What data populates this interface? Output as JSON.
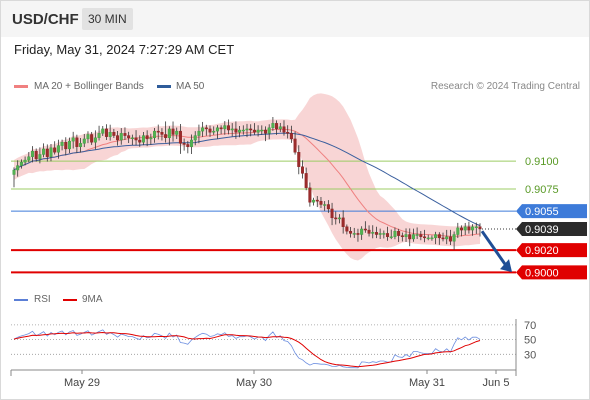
{
  "header": {
    "symbol": "USD/CHF",
    "period": "30 MIN"
  },
  "timestamp": "Friday, May 31, 2024 7:27:29 AM CET",
  "legend": [
    {
      "label": "MA 20 + Bollinger Bands",
      "color": "#f08080"
    },
    {
      "label": "MA 50",
      "color": "#2e5c9a"
    }
  ],
  "credit": "Research © 2024 Trading Central",
  "rsi_legend": [
    {
      "label": "RSI",
      "color": "#5b7fd6"
    },
    {
      "label": "9MA",
      "color": "#e00000"
    }
  ],
  "chart_data": [
    {
      "type": "candlestick",
      "title": "USD/CHF 30 MIN",
      "x_ticks": [
        "May 29",
        "May 30",
        "May 31",
        "Jun 5"
      ],
      "y_range": [
        0.8985,
        0.9155
      ],
      "last_price": "0.9039",
      "levels": [
        {
          "value": 0.91,
          "label": "0.9100",
          "kind": "resistance-minor",
          "color": "#9ccc65"
        },
        {
          "value": 0.9075,
          "label": "0.9075",
          "kind": "resistance-minor",
          "color": "#9ccc65"
        },
        {
          "value": 0.9055,
          "label": "0.9055",
          "kind": "pivot",
          "color": "#3d7bd9"
        },
        {
          "value": 0.902,
          "label": "0.9020",
          "kind": "target",
          "color": "#e00000"
        },
        {
          "value": 0.9,
          "label": "0.9000",
          "kind": "target",
          "color": "#e00000"
        }
      ],
      "forecast_arrow": {
        "from": 0.9037,
        "to": 0.9002,
        "color": "#1f4e96"
      },
      "close": [
        0.9092,
        0.9096,
        0.9099,
        0.9101,
        0.9104,
        0.9109,
        0.9102,
        0.9106,
        0.9111,
        0.9104,
        0.9112,
        0.9108,
        0.9114,
        0.9117,
        0.9111,
        0.9118,
        0.9121,
        0.9113,
        0.9116,
        0.912,
        0.9124,
        0.9117,
        0.9121,
        0.9125,
        0.9129,
        0.9122,
        0.9126,
        0.9123,
        0.9119,
        0.9125,
        0.9123,
        0.9121,
        0.9121,
        0.9119,
        0.9117,
        0.9123,
        0.912,
        0.9121,
        0.9127,
        0.9126,
        0.9124,
        0.9121,
        0.9129,
        0.9124,
        0.9127,
        0.9116,
        0.9115,
        0.9113,
        0.9119,
        0.9123,
        0.9127,
        0.913,
        0.9129,
        0.9126,
        0.9127,
        0.913,
        0.9129,
        0.9132,
        0.9128,
        0.9129,
        0.9126,
        0.9128,
        0.9128,
        0.9129,
        0.9128,
        0.9126,
        0.9128,
        0.9128,
        0.9125,
        0.913,
        0.9134,
        0.9129,
        0.9131,
        0.9126,
        0.9125,
        0.912,
        0.9108,
        0.9095,
        0.9089,
        0.9076,
        0.9063,
        0.9065,
        0.9064,
        0.9061,
        0.9061,
        0.9057,
        0.9049,
        0.9048,
        0.9049,
        0.9041,
        0.9037,
        0.9035,
        0.9035,
        0.9034,
        0.9039,
        0.9038,
        0.9035,
        0.9036,
        0.9034,
        0.9035,
        0.9035,
        0.9032,
        0.9032,
        0.9037,
        0.9033,
        0.9032,
        0.9034,
        0.903,
        0.9034,
        0.9034,
        0.9032,
        0.9031,
        0.9031,
        0.9031,
        0.9034,
        0.9031,
        0.903,
        0.9032,
        0.9028,
        0.9034,
        0.904,
        0.9038,
        0.9041,
        0.9038,
        0.9041,
        0.9041,
        0.9039
      ]
    },
    {
      "type": "line",
      "title": "RSI",
      "y_ticks": [
        70,
        50,
        30
      ],
      "y_range": [
        10,
        78
      ]
    }
  ]
}
